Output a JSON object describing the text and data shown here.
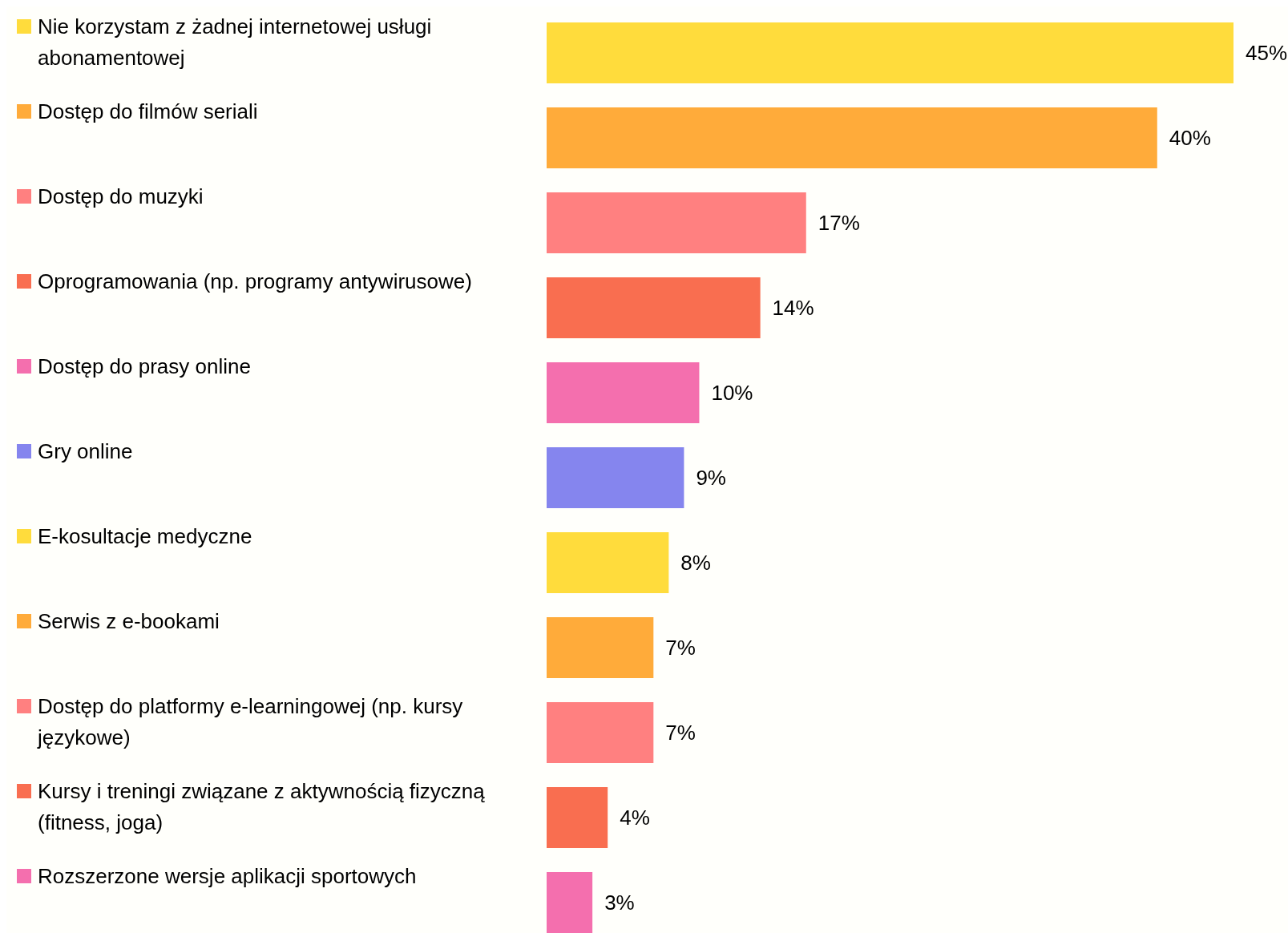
{
  "chart_data": {
    "type": "bar",
    "orientation": "horizontal",
    "value_labels": [
      "45%",
      "40%",
      "17%",
      "14%",
      "10%",
      "9%",
      "8%",
      "7%",
      "7%",
      "4%",
      "3%"
    ],
    "categories": [
      "Nie korzystam z żadnej internetowej usługi abonamentowej",
      "Dostęp do filmów seriali",
      "Dostęp do muzyki",
      "Oprogramowania (np. programy antywirusowe)",
      "Dostęp do prasy online",
      "Gry online",
      "E-kosultacje medyczne",
      "Serwis z e-bookami",
      "Dostęp do platformy e-learningowej (np. kursy językowe)",
      "Kursy i treningi związane z aktywnością fizyczną (fitness, joga)",
      "Rozszerzone wersje aplikacji sportowych"
    ],
    "values": [
      45,
      40,
      17,
      14,
      10,
      9,
      8,
      7,
      7,
      4,
      3
    ],
    "colors": [
      "#ffdc3c",
      "#ffab3a",
      "#ff8080",
      "#f96e50",
      "#f46fae",
      "#8585ee",
      "#ffdc3c",
      "#ffab3a",
      "#ff8080",
      "#f96e50",
      "#f46fae"
    ]
  }
}
